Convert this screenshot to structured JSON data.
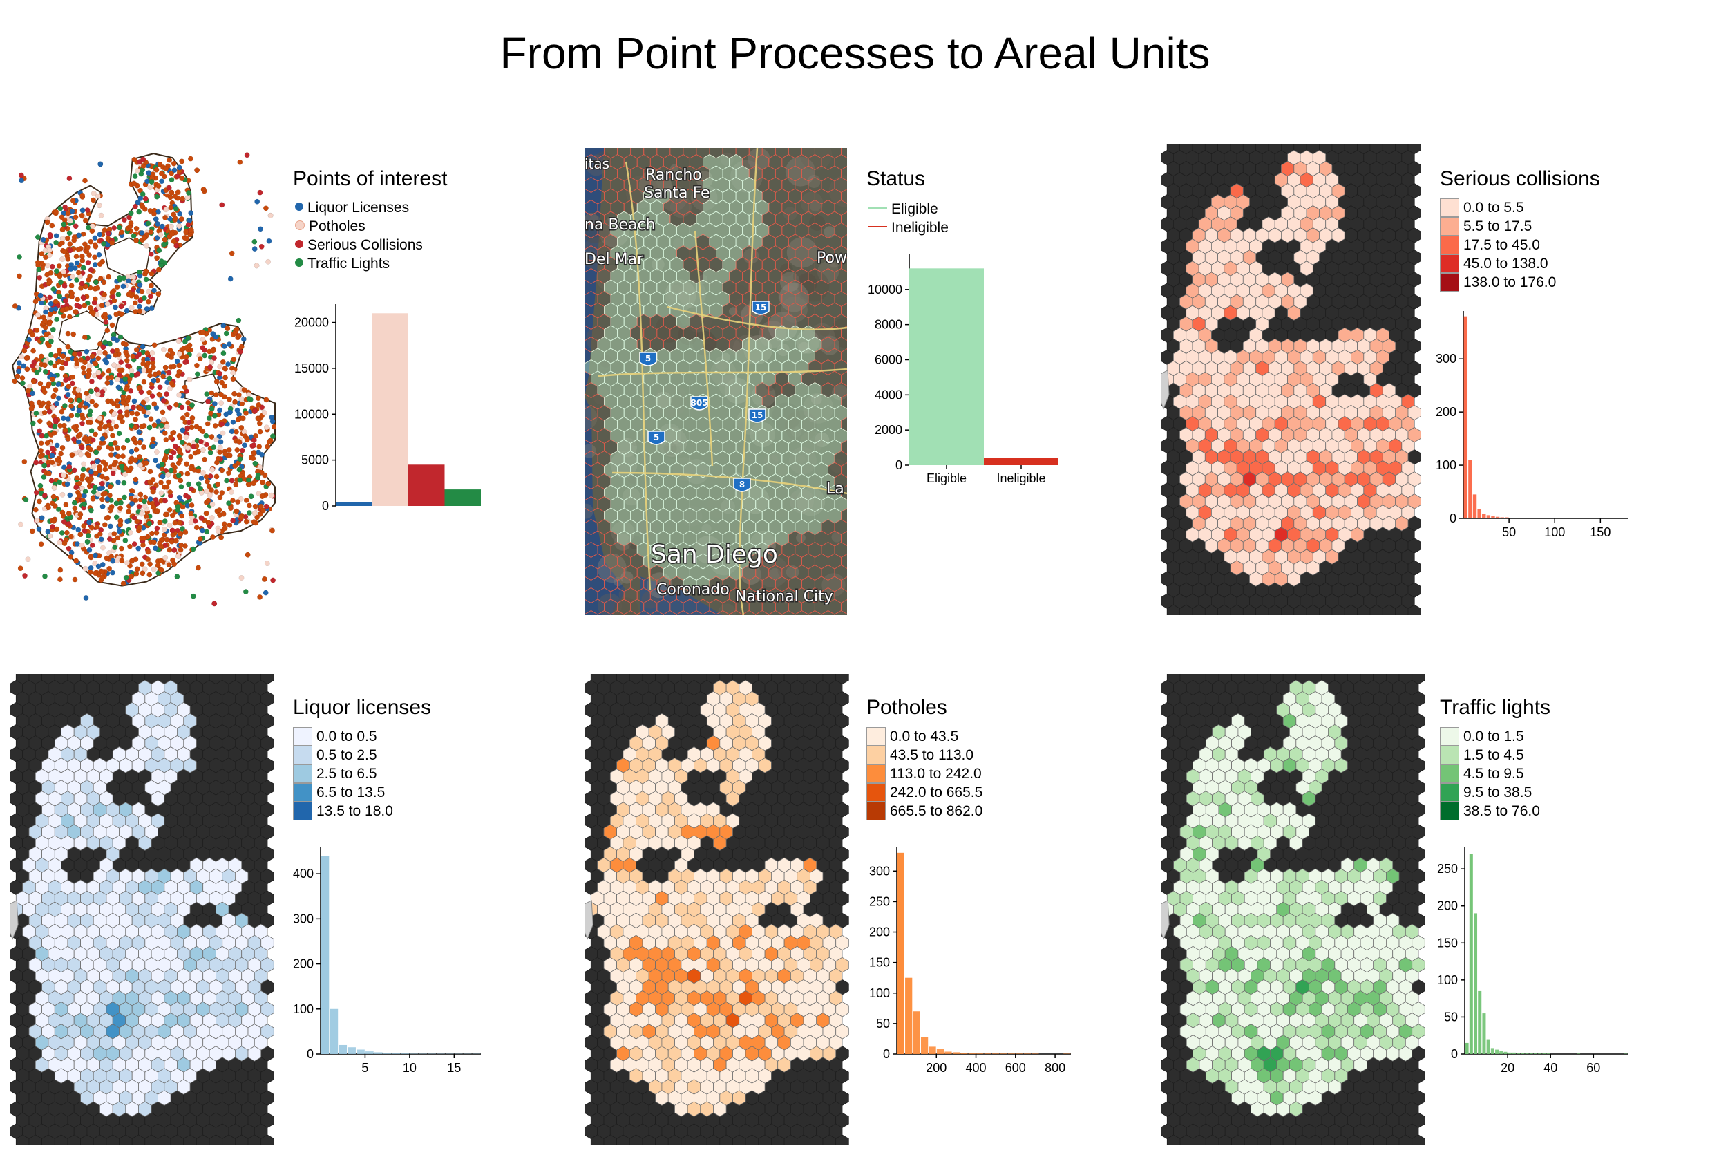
{
  "title": "From Point Processes to Areal Units",
  "colors": {
    "land_dark": "#2d2d2d",
    "outline": "#3a2a1a",
    "liquor": "#2166ac",
    "potholes": "#f5d4c8",
    "collisions": "#c1272d",
    "traffic": "#238b45",
    "eligible": "#a1e0b4",
    "ineligible": "#d7301f",
    "hex_eligible": "#b9e6c2",
    "hex_ineligible": "#e05a4a"
  },
  "panels": {
    "points": {
      "legend_title": "Points of interest",
      "legend_items": [
        {
          "label": "Liquor Licenses",
          "color": "#2166ac"
        },
        {
          "label": "Potholes",
          "color": "#f5d4c8"
        },
        {
          "label": "Serious Collisions",
          "color": "#c1272d"
        },
        {
          "label": "Traffic Lights",
          "color": "#238b45"
        }
      ]
    },
    "status": {
      "legend_title": "Status",
      "legend_items": [
        {
          "label": "Eligible",
          "color": "#a1e0b4"
        },
        {
          "label": "Ineligible",
          "color": "#d7301f"
        }
      ],
      "map_labels": [
        "Rancho",
        "Santa Fe",
        "na Beach",
        "Del Mar",
        "itas",
        "Pow",
        "La",
        "San Diego",
        "Coronado",
        "National City"
      ],
      "highway_labels": [
        "15",
        "5",
        "805",
        "15",
        "5",
        "8"
      ]
    },
    "collisions": {
      "legend_title": "Serious collisions",
      "legend_items": [
        {
          "label": "0.0 to 5.5",
          "color": "#fee0d2"
        },
        {
          "label": "5.5 to 17.5",
          "color": "#fcae91"
        },
        {
          "label": "17.5 to 45.0",
          "color": "#fb6a4a"
        },
        {
          "label": "45.0 to 138.0",
          "color": "#de2d26"
        },
        {
          "label": "138.0 to 176.0",
          "color": "#a50f15"
        }
      ]
    },
    "liquor": {
      "legend_title": "Liquor licenses",
      "legend_items": [
        {
          "label": "0.0 to 0.5",
          "color": "#eff3ff"
        },
        {
          "label": "0.5 to 2.5",
          "color": "#c6dbef"
        },
        {
          "label": "2.5 to 6.5",
          "color": "#9ecae1"
        },
        {
          "label": "6.5 to 13.5",
          "color": "#4292c6"
        },
        {
          "label": "13.5 to 18.0",
          "color": "#2166ac"
        }
      ]
    },
    "potholes": {
      "legend_title": "Potholes",
      "legend_items": [
        {
          "label": "0.0 to 43.5",
          "color": "#feedde"
        },
        {
          "label": "43.5 to 113.0",
          "color": "#fdd0a2"
        },
        {
          "label": "113.0 to 242.0",
          "color": "#fd8d3c"
        },
        {
          "label": "242.0 to 665.5",
          "color": "#e6550d"
        },
        {
          "label": "665.5 to 862.0",
          "color": "#b83a04"
        }
      ]
    },
    "traffic": {
      "legend_title": "Traffic lights",
      "legend_items": [
        {
          "label": "0.0 to 1.5",
          "color": "#edf8e9"
        },
        {
          "label": "1.5 to 4.5",
          "color": "#bae4b3"
        },
        {
          "label": "4.5 to 9.5",
          "color": "#74c476"
        },
        {
          "label": "9.5 to 38.5",
          "color": "#31a354"
        },
        {
          "label": "38.5 to 76.0",
          "color": "#006d2c"
        }
      ]
    }
  },
  "chart_data": [
    {
      "type": "bar",
      "id": "points",
      "categories": [
        "Liquor Licenses",
        "Potholes",
        "Serious Collisions",
        "Traffic Lights"
      ],
      "values": [
        400,
        21000,
        4500,
        1800
      ],
      "colors": [
        "#2166ac",
        "#f5d4c8",
        "#c1272d",
        "#238b45"
      ],
      "ylim": [
        0,
        22000
      ],
      "yticks": [
        0,
        5000,
        10000,
        15000,
        20000
      ],
      "show_xlabels": false
    },
    {
      "type": "bar",
      "id": "status",
      "categories": [
        "Eligible",
        "Ineligible"
      ],
      "values": [
        11200,
        400
      ],
      "colors": [
        "#a1e0b4",
        "#d7301f"
      ],
      "ylim": [
        0,
        12000
      ],
      "yticks": [
        0,
        2000,
        4000,
        6000,
        8000,
        10000
      ],
      "show_xlabels": true
    },
    {
      "type": "bar",
      "id": "collisions-hist",
      "x_start": 0,
      "bin_width": 5,
      "values": [
        380,
        110,
        45,
        18,
        9,
        6,
        4,
        3,
        2,
        2,
        1,
        1,
        1,
        1,
        0,
        1,
        0,
        0,
        0,
        0,
        0,
        0,
        0,
        0,
        0,
        0,
        0,
        0,
        0,
        0,
        0,
        0,
        0,
        0,
        0,
        1
      ],
      "xlim": [
        0,
        180
      ],
      "xticks": [
        50,
        100,
        150
      ],
      "ylim": [
        0,
        390
      ],
      "yticks": [
        0,
        100,
        200,
        300
      ],
      "color": "#fb6a4a"
    },
    {
      "type": "bar",
      "id": "liquor-hist",
      "x_start": 0,
      "bin_width": 1,
      "values": [
        440,
        100,
        20,
        15,
        10,
        6,
        4,
        3,
        2,
        2,
        1,
        1,
        1,
        1,
        1,
        1,
        1,
        1
      ],
      "xlim": [
        0,
        18
      ],
      "xticks": [
        5,
        10,
        15
      ],
      "ylim": [
        0,
        460
      ],
      "yticks": [
        0,
        100,
        200,
        300,
        400
      ],
      "color": "#9ecae1"
    },
    {
      "type": "bar",
      "id": "potholes-hist",
      "x_start": 0,
      "bin_width": 40,
      "values": [
        330,
        125,
        70,
        28,
        12,
        8,
        4,
        3,
        2,
        2,
        1,
        1,
        1,
        1,
        1,
        1,
        1,
        1,
        0,
        0,
        0,
        1
      ],
      "xlim": [
        0,
        880
      ],
      "xticks": [
        200,
        400,
        600,
        800
      ],
      "ylim": [
        0,
        340
      ],
      "yticks": [
        0,
        50,
        100,
        150,
        200,
        250,
        300
      ],
      "color": "#fd8d3c"
    },
    {
      "type": "bar",
      "id": "traffic-hist",
      "x_start": 0,
      "bin_width": 2,
      "values": [
        15,
        270,
        190,
        85,
        55,
        20,
        8,
        6,
        4,
        3,
        2,
        2,
        1,
        1,
        1,
        1,
        1,
        1,
        1,
        1,
        0,
        0,
        0,
        0,
        0,
        0,
        1,
        0,
        0,
        0,
        0,
        0,
        0,
        0,
        0,
        0,
        0,
        1
      ],
      "xlim": [
        0,
        76
      ],
      "xticks": [
        20,
        40,
        60
      ],
      "ylim": [
        0,
        280
      ],
      "yticks": [
        0,
        50,
        100,
        150,
        200,
        250
      ],
      "color": "#74c476"
    }
  ]
}
